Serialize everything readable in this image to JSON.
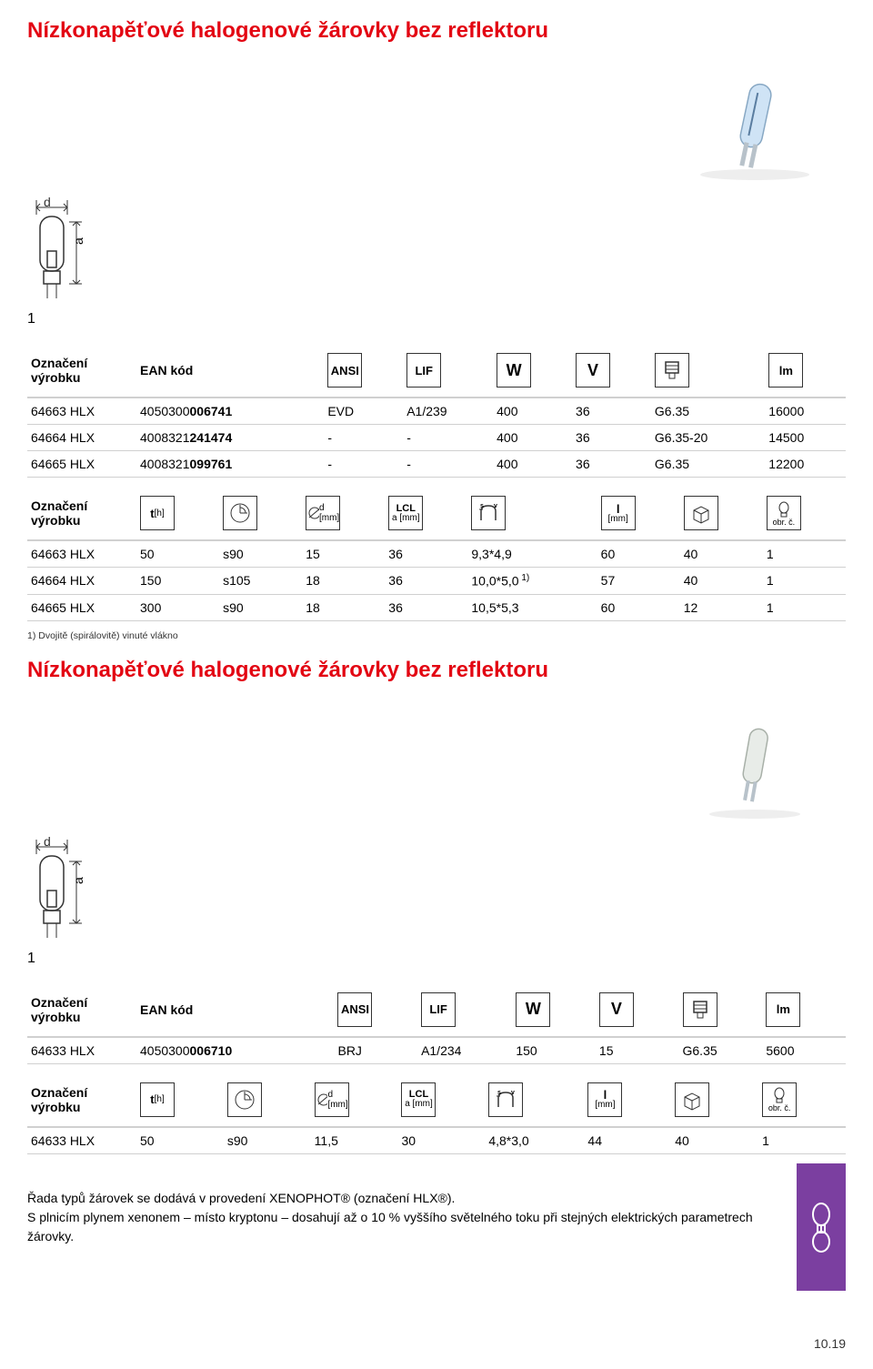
{
  "title1": "Nízkonapěťové halogenové žárovky bez reflektoru",
  "diagram": {
    "d": "d",
    "a": "a",
    "index": "1"
  },
  "headers": {
    "oznaceni": "Označení\nvýrobku",
    "ean": "EAN kód",
    "ansi": "ANSI",
    "lif": "LIF",
    "w": "W",
    "v": "V",
    "lm": "lm",
    "th": "t [h]",
    "dmm": "d [mm]",
    "lcl": "LCL",
    "amm": "a [mm]",
    "lmm": "l",
    "lmm_sub": "[mm]",
    "obr": "obr. č."
  },
  "table1a": {
    "rows": [
      {
        "p": "64663 HLX",
        "ean": "4050300006741",
        "ansi": "EVD",
        "lif": "A1/239",
        "w": "400",
        "v": "36",
        "base": "G6.35",
        "lm": "16000"
      },
      {
        "p": "64664 HLX",
        "ean": "4008321241474",
        "ansi": "-",
        "lif": "-",
        "w": "400",
        "v": "36",
        "base": "G6.35-20",
        "lm": "14500"
      },
      {
        "p": "64665 HLX",
        "ean": "4008321099761",
        "ansi": "-",
        "lif": "-",
        "w": "400",
        "v": "36",
        "base": "G6.35",
        "lm": "12200"
      }
    ],
    "ean_bold": [
      "006741",
      "241474",
      "099761"
    ]
  },
  "table1b": {
    "rows": [
      {
        "p": "64663 HLX",
        "th": "50",
        "pos": "s90",
        "d": "15",
        "a": "36",
        "lcl": "9,3*4,9",
        "sup": "",
        "l": "60",
        "pack": "40",
        "obr": "1"
      },
      {
        "p": "64664 HLX",
        "th": "150",
        "pos": "s105",
        "d": "18",
        "a": "36",
        "lcl": "10,0*5,0",
        "sup": "1)",
        "l": "57",
        "pack": "40",
        "obr": "1"
      },
      {
        "p": "64665 HLX",
        "th": "300",
        "pos": "s90",
        "d": "18",
        "a": "36",
        "lcl": "10,5*5,3",
        "sup": "",
        "l": "60",
        "pack": "12",
        "obr": "1"
      }
    ]
  },
  "footnote1": "1) Dvojitě (spirálovitě) vinuté vlákno",
  "title2": "Nízkonapěťové halogenové žárovky bez reflektoru",
  "table2a": {
    "rows": [
      {
        "p": "64633 HLX",
        "ean": "4050300006710",
        "ansi": "BRJ",
        "lif": "A1/234",
        "w": "150",
        "v": "15",
        "base": "G6.35",
        "lm": "5600"
      }
    ],
    "ean_bold": [
      "006710"
    ]
  },
  "table2b": {
    "rows": [
      {
        "p": "64633 HLX",
        "th": "50",
        "pos": "s90",
        "d": "11,5",
        "a": "30",
        "lcl": "4,8*3,0",
        "l": "44",
        "pack": "40",
        "obr": "1"
      }
    ]
  },
  "bottom_text_1": "Řada typů žárovek se dodává v provedení XENOPHOT® (označení HLX®).",
  "bottom_text_2": "S plnicím plynem xenonem – místo kryptonu – dosahují až o 10 % vyššího světelného toku při stejných elektrických parametrech žárovky.",
  "page_num": "10.19",
  "colors": {
    "title": "#e30613",
    "border": "#d0d0d0",
    "tab": "#7b3fa0"
  }
}
